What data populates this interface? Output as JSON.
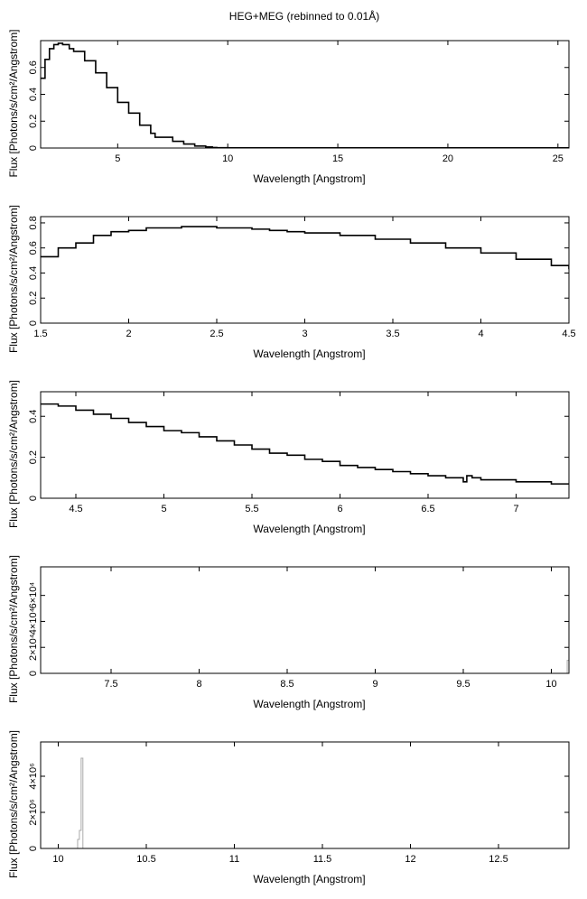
{
  "figure": {
    "title": "HEG+MEG (rebinned to 0.01Å)"
  },
  "colors": {
    "axis": "#000000",
    "series_main": "#000000",
    "series_gray": "#aaaaaa",
    "background": "#ffffff"
  },
  "chart_data": [
    {
      "type": "line",
      "step": true,
      "xlabel": "Wavelength [Angstrom]",
      "ylabel": "Flux [Photons/s/cm²/Angstrom]",
      "xlim": [
        1.5,
        25.5
      ],
      "ylim": [
        0,
        0.8
      ],
      "xticks": [
        5,
        10,
        15,
        20,
        25
      ],
      "yticks": [
        0,
        0.2,
        0.4,
        0.6
      ],
      "xtick_labels": [
        "5",
        "10",
        "15",
        "20",
        "25"
      ],
      "ytick_labels": [
        "0",
        "0.2",
        "0.4",
        "0.6"
      ],
      "series": [
        {
          "x": [
            1.5,
            1.7,
            1.9,
            2.1,
            2.3,
            2.5,
            2.8,
            3.0,
            3.5,
            4.0,
            4.5,
            5.0,
            5.5,
            6.0,
            6.5,
            6.7,
            7.0,
            7.5,
            8.0,
            8.5,
            9.0,
            9.3,
            9.5,
            10.0,
            12.0,
            15.0,
            20.0,
            25.5
          ],
          "y": [
            0.52,
            0.66,
            0.74,
            0.77,
            0.78,
            0.77,
            0.74,
            0.72,
            0.65,
            0.56,
            0.45,
            0.34,
            0.26,
            0.17,
            0.11,
            0.08,
            0.08,
            0.05,
            0.03,
            0.015,
            0.008,
            0.004,
            0.002,
            0.001,
            0.001,
            0.001,
            0.001,
            0.001
          ]
        }
      ]
    },
    {
      "type": "line",
      "step": true,
      "xlabel": "Wavelength [Angstrom]",
      "ylabel": "Flux [Photons/s/cm²/Angstrom]",
      "xlim": [
        1.5,
        4.5
      ],
      "ylim": [
        0,
        0.85
      ],
      "xticks": [
        1.5,
        2,
        2.5,
        3,
        3.5,
        4,
        4.5
      ],
      "yticks": [
        0,
        0.2,
        0.4,
        0.6,
        0.8
      ],
      "xtick_labels": [
        "1.5",
        "2",
        "2.5",
        "3",
        "3.5",
        "4",
        "4.5"
      ],
      "ytick_labels": [
        "0",
        "0.2",
        "0.4",
        "0.6",
        "0.8"
      ],
      "series": [
        {
          "x": [
            1.5,
            1.6,
            1.7,
            1.8,
            1.9,
            2.0,
            2.1,
            2.2,
            2.3,
            2.4,
            2.5,
            2.6,
            2.7,
            2.8,
            2.9,
            3.0,
            3.2,
            3.4,
            3.6,
            3.8,
            4.0,
            4.2,
            4.4,
            4.5
          ],
          "y": [
            0.53,
            0.6,
            0.64,
            0.7,
            0.73,
            0.74,
            0.76,
            0.76,
            0.77,
            0.77,
            0.76,
            0.76,
            0.75,
            0.74,
            0.73,
            0.72,
            0.7,
            0.67,
            0.64,
            0.6,
            0.56,
            0.51,
            0.46,
            0.43
          ]
        }
      ]
    },
    {
      "type": "line",
      "step": true,
      "xlabel": "Wavelength [Angstrom]",
      "ylabel": "Flux [Photons/s/cm²/Angstrom]",
      "xlim": [
        4.3,
        7.3
      ],
      "ylim": [
        0,
        0.52
      ],
      "xticks": [
        4.5,
        5,
        5.5,
        6,
        6.5,
        7
      ],
      "yticks": [
        0,
        0.2,
        0.4
      ],
      "xtick_labels": [
        "4.5",
        "5",
        "5.5",
        "6",
        "6.5",
        "7"
      ],
      "ytick_labels": [
        "0",
        "0.2",
        "0.4"
      ],
      "series": [
        {
          "x": [
            4.3,
            4.4,
            4.5,
            4.6,
            4.7,
            4.8,
            4.9,
            5.0,
            5.1,
            5.2,
            5.3,
            5.4,
            5.5,
            5.6,
            5.7,
            5.8,
            5.9,
            6.0,
            6.1,
            6.2,
            6.3,
            6.4,
            6.5,
            6.6,
            6.7,
            6.72,
            6.75,
            6.8,
            6.9,
            7.0,
            7.1,
            7.2,
            7.3
          ],
          "y": [
            0.46,
            0.45,
            0.43,
            0.41,
            0.39,
            0.37,
            0.35,
            0.33,
            0.32,
            0.3,
            0.28,
            0.26,
            0.24,
            0.22,
            0.21,
            0.19,
            0.18,
            0.16,
            0.15,
            0.14,
            0.13,
            0.12,
            0.11,
            0.1,
            0.08,
            0.11,
            0.1,
            0.09,
            0.09,
            0.08,
            0.08,
            0.07,
            0.07
          ]
        }
      ]
    },
    {
      "type": "line",
      "step": true,
      "xlabel": "Wavelength [Angstrom]",
      "ylabel": "Flux [Photons/s/cm²/Angstrom]",
      "xlim": [
        7.1,
        10.1
      ],
      "ylim": [
        0,
        82000
      ],
      "xticks": [
        7.5,
        8,
        8.5,
        9,
        9.5,
        10
      ],
      "yticks": [
        0,
        20000,
        40000,
        60000
      ],
      "xtick_labels": [
        "7.5",
        "8",
        "8.5",
        "9",
        "9.5",
        "10"
      ],
      "ytick_labels": [
        "0",
        "2×10⁴",
        "4×10⁴",
        "6×10⁴"
      ],
      "series": [
        {
          "x": [
            7.1,
            10.08,
            10.09,
            10.1
          ],
          "y": [
            0,
            0,
            10000,
            10000
          ]
        }
      ]
    },
    {
      "type": "line",
      "step": true,
      "xlabel": "Wavelength [Angstrom]",
      "ylabel": "Flux [Photons/s/cm²/Angstrom]",
      "xlim": [
        9.9,
        12.9
      ],
      "ylim": [
        0,
        5900000
      ],
      "xticks": [
        10,
        10.5,
        11,
        11.5,
        12,
        12.5
      ],
      "yticks": [
        0,
        2000000,
        4000000
      ],
      "xtick_labels": [
        "10",
        "10.5",
        "11",
        "11.5",
        "12",
        "12.5"
      ],
      "ytick_labels": [
        "0",
        "2×10⁶",
        "4×10⁶"
      ],
      "series": [
        {
          "x": [
            9.9,
            10.1,
            10.11,
            10.12,
            10.13,
            10.14,
            10.15,
            12.9
          ],
          "y": [
            0,
            0,
            500000,
            1000000,
            5000000,
            0,
            0,
            0
          ]
        }
      ]
    }
  ]
}
